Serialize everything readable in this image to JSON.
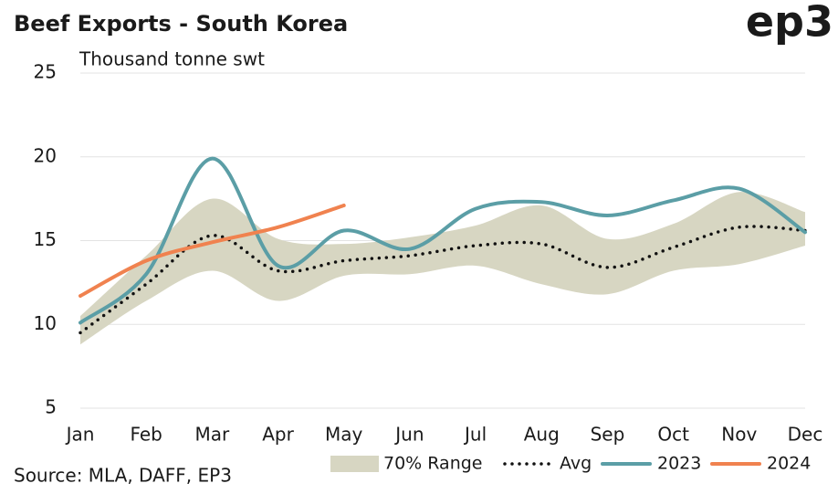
{
  "brand": "ep3",
  "source": "Source: MLA, DAFF, EP3",
  "chart_data": {
    "type": "line",
    "title": "Beef Exports - South Korea",
    "y_label": "Thousand tonne swt",
    "categories": [
      "Jan",
      "Feb",
      "Mar",
      "Apr",
      "May",
      "Jun",
      "Jul",
      "Aug",
      "Sep",
      "Oct",
      "Nov",
      "Dec"
    ],
    "ylim": [
      5,
      25
    ],
    "yticks": [
      5,
      10,
      15,
      20,
      25
    ],
    "grid": true,
    "legend": "bottom",
    "series": [
      {
        "name": "70% Range",
        "color": "#d7d6c2",
        "style": "band",
        "high": [
          10.5,
          14.1,
          17.5,
          15.1,
          14.8,
          15.2,
          15.9,
          17.1,
          15.1,
          16.0,
          17.9,
          16.7
        ],
        "low": [
          8.8,
          11.4,
          13.2,
          11.4,
          12.9,
          13.0,
          13.5,
          12.4,
          11.8,
          13.2,
          13.6,
          14.7
        ]
      },
      {
        "name": "Avg",
        "color": "#111111",
        "style": "dotted",
        "values": [
          9.5,
          12.4,
          15.3,
          13.2,
          13.8,
          14.1,
          14.7,
          14.8,
          13.4,
          14.6,
          15.8,
          15.6
        ]
      },
      {
        "name": "2023",
        "color": "#5b9ea6",
        "style": "solid",
        "values": [
          10.1,
          13.0,
          19.9,
          13.5,
          15.6,
          14.5,
          16.9,
          17.3,
          16.5,
          17.4,
          18.1,
          15.5
        ]
      },
      {
        "name": "2024",
        "color": "#f0824f",
        "style": "solid",
        "values": [
          11.7,
          13.8,
          14.9,
          15.8,
          17.1,
          null,
          null,
          null,
          null,
          null,
          null,
          null
        ]
      }
    ]
  }
}
